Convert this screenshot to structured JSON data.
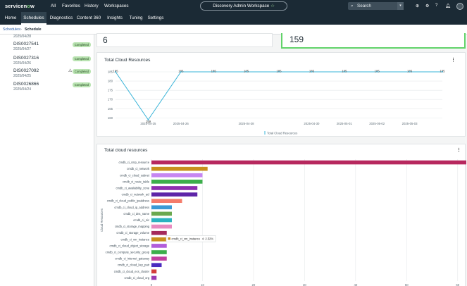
{
  "header": {
    "logo_text_a": "service",
    "logo_text_o": "n",
    "logo_text_b": "w",
    "nav": [
      "All",
      "Favorites",
      "History",
      "Workspaces"
    ],
    "workspace": "Discovery Admin Workspace",
    "workspace_star": "☆",
    "search_placeholder": "Search",
    "search_icon": "search-icon",
    "icons": [
      "globe-icon",
      "admin-icon",
      "help-icon",
      "bell-icon"
    ]
  },
  "tabs": [
    {
      "label": "Home"
    },
    {
      "label": "Schedules"
    },
    {
      "label": "Diagnostics"
    },
    {
      "label": "Content 360"
    },
    {
      "label": "Insights"
    },
    {
      "label": "Tuning"
    },
    {
      "label": "Settings"
    }
  ],
  "breadcrumb": {
    "parent": "Schedules",
    "sep": "›",
    "current": "Schedule"
  },
  "sidebar": {
    "items": [
      {
        "id": "",
        "date": "2025/04/28",
        "status": ""
      },
      {
        "id": "DIS0027541",
        "date": "2025/04/27",
        "status": "Completed"
      },
      {
        "id": "DIS0027316",
        "date": "2025/04/26",
        "status": "Completed"
      },
      {
        "id": "DIS0027092",
        "date": "2025/04/25",
        "status": "Completed",
        "warning": "⚠"
      },
      {
        "id": "DIS0026866",
        "date": "2025/04/24",
        "status": "Completed"
      }
    ]
  },
  "summary": {
    "left_value": "6",
    "right_value": "159"
  },
  "colors": {
    "accent": "#62d36a",
    "line": "#3ab4d8",
    "header_bg": "#1b2a35"
  },
  "chart_data": [
    {
      "type": "line",
      "title": "Total Cloud Resources",
      "x": [
        "2025-04-24",
        "2025-04-25",
        "2025-04-26",
        "2025-04-27",
        "2025-04-28",
        "2025-04-29",
        "2025-04-30",
        "2025-05-01",
        "2025-05-02",
        "2025-05-03",
        "2025-05-04"
      ],
      "x_tick_labels": [
        "2025-04-25",
        "2025-04-26",
        "2025-04-28",
        "2025-04-30",
        "2025-05-01",
        "2025-05-02",
        "2025-05-03"
      ],
      "series": [
        {
          "name": "Total Cloud Resources",
          "values": [
            185,
            159,
            185,
            185,
            185,
            185,
            185,
            185,
            185,
            185,
            185
          ]
        }
      ],
      "yticks": [
        160,
        165,
        170,
        175,
        180,
        185
      ],
      "ylim": [
        159,
        185
      ]
    },
    {
      "type": "bar",
      "orientation": "horizontal",
      "title": "Total cloud resources",
      "ylabel": "Cloud Resources",
      "categories": [
        "cmdb_ci_cmp_resource",
        "cmdb_ci_network",
        "cmdb_ci_cloud_subnet",
        "cmdb_ci_route_table",
        "cmdb_ci_availability_zone",
        "cmdb_ci_network_acl",
        "cmdb_ci_cloud_public_ipaddress",
        "cmdb_ci_cloud_ip_address",
        "cmdb_ci_dns_name",
        "cmdb_ci_nic",
        "cmdb_ci_storage_mapping",
        "cmdb_ci_storage_volume",
        "cmdb_ci_vm_instance",
        "cmdb_ci_cloud_object_storage",
        "cmdb_ci_compute_security_group",
        "cmdb_ci_internet_gateway",
        "cmdb_ci_cloud_key_pair",
        "cmdb_ci_cloud_ecs_cluster",
        "cmdb_ci_cloud_org"
      ],
      "values": [
        66,
        11,
        10,
        10,
        9,
        9,
        6,
        4,
        4,
        4,
        4,
        3,
        4,
        3,
        3,
        3,
        2,
        1,
        1
      ],
      "colors": [
        "#b7285e",
        "#c9901d",
        "#c686f2",
        "#3cae4b",
        "#8d2fb0",
        "#5e24a8",
        "#f47c6b",
        "#3b9ad4",
        "#6aa84f",
        "#2bb3c0",
        "#e88ac0",
        "#a52a5a",
        "#c9901d",
        "#b25ddb",
        "#3cae4b",
        "#c13fa0",
        "#4a2bbf",
        "#d33d3d",
        "#9a3ab2"
      ],
      "xticks": [
        0,
        10,
        20,
        30,
        40,
        50,
        60
      ],
      "xlim": [
        0,
        61
      ],
      "tooltip": {
        "label": "cmdb_ci_vm_instance",
        "value": "4: 2.52%"
      }
    }
  ]
}
